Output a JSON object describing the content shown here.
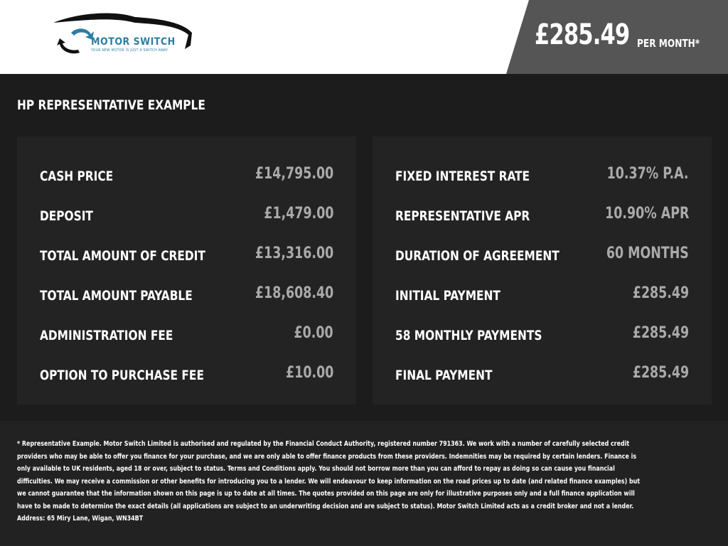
{
  "header": {
    "logo_name": "MOTOR SWITCH",
    "logo_tagline": "YOUR NEW MOTOR IS JUST A SWITCH AWAY",
    "monthly_price": "£285.49",
    "per_month_label": "PER MONTH*",
    "brand_color": "#2e7ea0"
  },
  "section_title": "HP REPRESENTATIVE EXAMPLE",
  "left_rows": [
    {
      "label": "CASH PRICE",
      "value": "£14,795.00"
    },
    {
      "label": "DEPOSIT",
      "value": "£1,479.00"
    },
    {
      "label": "TOTAL AMOUNT OF CREDIT",
      "value": "£13,316.00"
    },
    {
      "label": "TOTAL AMOUNT PAYABLE",
      "value": "£18,608.40"
    },
    {
      "label": "ADMINISTRATION FEE",
      "value": "£0.00"
    },
    {
      "label": "OPTION TO PURCHASE FEE",
      "value": "£10.00"
    }
  ],
  "right_rows": [
    {
      "label": "FIXED INTEREST RATE",
      "value": "10.37% P.A."
    },
    {
      "label": "REPRESENTATIVE APR",
      "value": "10.90% APR"
    },
    {
      "label": "DURATION OF AGREEMENT",
      "value": "60 MONTHS"
    },
    {
      "label": "INITIAL PAYMENT",
      "value": "£285.49"
    },
    {
      "label": "58 MONTHLY PAYMENTS",
      "value": "£285.49"
    },
    {
      "label": "FINAL PAYMENT",
      "value": "£285.49"
    }
  ],
  "footer": {
    "disclaimer": "* Representative Example. Motor Switch Limited  is authorised and regulated by the Financial Conduct Authority, registered number 791363. We work with a number of carefully selected credit providers who may be able to offer you finance for your purchase, and we are only able to offer finance products from these providers. Indemnities may be required by certain lenders. Finance is only available to UK residents, aged 18 or over, subject to status. Terms and Conditions apply. You should not borrow more than you can afford to repay as doing so can cause you financial difficulties. We may receive a commission or other benefits for introducing you to a lender. We will endeavour to keep information on the road prices up to date (and related finance examples) but we cannot guarantee that the information shown on this page is up to date at all times. The quotes provided on this page are only for illustrative purposes only and a full finance application will have to be made to determine the exact details (all applications are subject to an underwriting decision and are subject to status). Motor Switch Limited  acts as a credit broker and not a lender. Address: 65 Miry Lane, Wigan, WN34BT"
  }
}
